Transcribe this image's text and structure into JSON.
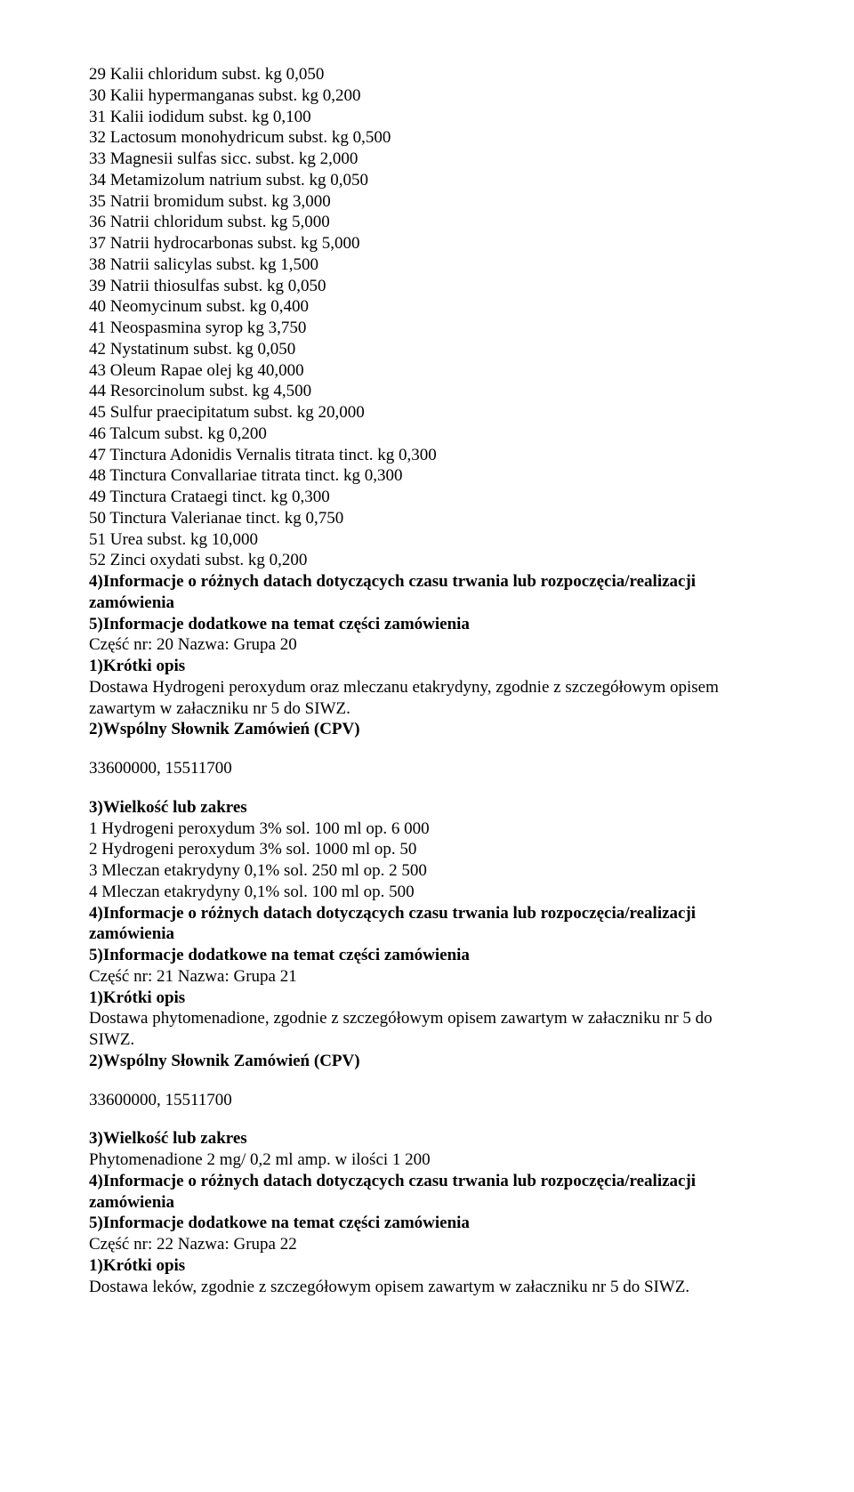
{
  "lines": [
    "29 Kalii chloridum subst. kg 0,050",
    "30 Kalii hypermanganas subst. kg 0,200",
    "31 Kalii iodidum subst. kg 0,100",
    "32 Lactosum monohydricum subst. kg 0,500",
    "33 Magnesii sulfas sicc. subst. kg 2,000",
    "34 Metamizolum natrium subst. kg 0,050",
    "35 Natrii bromidum subst. kg 3,000",
    "36 Natrii chloridum subst. kg 5,000",
    "37 Natrii hydrocarbonas subst. kg 5,000",
    "38 Natrii salicylas subst. kg 1,500",
    "39 Natrii thiosulfas subst. kg 0,050",
    "40 Neomycinum subst. kg 0,400",
    "41 Neospasmina syrop kg 3,750",
    "42 Nystatinum subst. kg 0,050",
    "43 Oleum Rapae olej kg 40,000",
    "44 Resorcinolum subst. kg 4,500",
    "45 Sulfur praecipitatum subst. kg 20,000",
    "46 Talcum subst. kg 0,200",
    "47 Tinctura Adonidis Vernalis titrata tinct. kg 0,300",
    "48 Tinctura Convallariae titrata tinct. kg 0,300",
    "49 Tinctura Crataegi tinct. kg 0,300",
    "50 Tinctura Valerianae tinct. kg 0,750",
    "51 Urea subst. kg 10,000",
    "52 Zinci oxydati subst. kg 0,200"
  ],
  "s4": {
    "heading_a": "4)Informacje o różnych datach dotyczących czasu trwania lub rozpoczęcia/realizacji",
    "heading_b": "zamówienia"
  },
  "s5": {
    "heading": "5)Informacje dodatkowe na temat części zamówienia"
  },
  "part20": {
    "title": "Część nr: 20 Nazwa: Grupa 20",
    "short_label": "1)Krótki opis",
    "short_desc_a": "Dostawa Hydrogeni peroxydum oraz mleczanu etakrydyny, zgodnie z szczegółowym opisem",
    "short_desc_b": "zawartym w załaczniku nr 5 do SIWZ.",
    "cpv_label": "2)Wspólny Słownik Zamówień (CPV)",
    "cpv_value": "33600000, 15511700",
    "size_label": "3)Wielkość lub zakres",
    "items": [
      "1 Hydrogeni peroxydum 3% sol. 100 ml op. 6 000",
      "2 Hydrogeni peroxydum 3% sol. 1000 ml op. 50",
      "3 Mleczan etakrydyny 0,1% sol. 250 ml op. 2 500",
      "4 Mleczan etakrydyny 0,1% sol. 100 ml op. 500"
    ]
  },
  "part21": {
    "title": "Część nr: 21 Nazwa: Grupa 21",
    "short_label": "1)Krótki opis",
    "short_desc_a": "Dostawa phytomenadione, zgodnie z szczegółowym opisem zawartym w załaczniku nr 5 do",
    "short_desc_b": "SIWZ.",
    "cpv_label": "2)Wspólny Słownik Zamówień (CPV)",
    "cpv_value": "33600000, 15511700",
    "size_label": "3)Wielkość lub zakres",
    "item": "Phytomenadione 2 mg/ 0,2 ml amp. w ilości 1 200"
  },
  "part22": {
    "title": "Część nr: 22 Nazwa: Grupa 22",
    "short_label": "1)Krótki opis",
    "short_desc": "Dostawa leków, zgodnie z szczegółowym opisem zawartym w załaczniku nr 5 do SIWZ."
  }
}
